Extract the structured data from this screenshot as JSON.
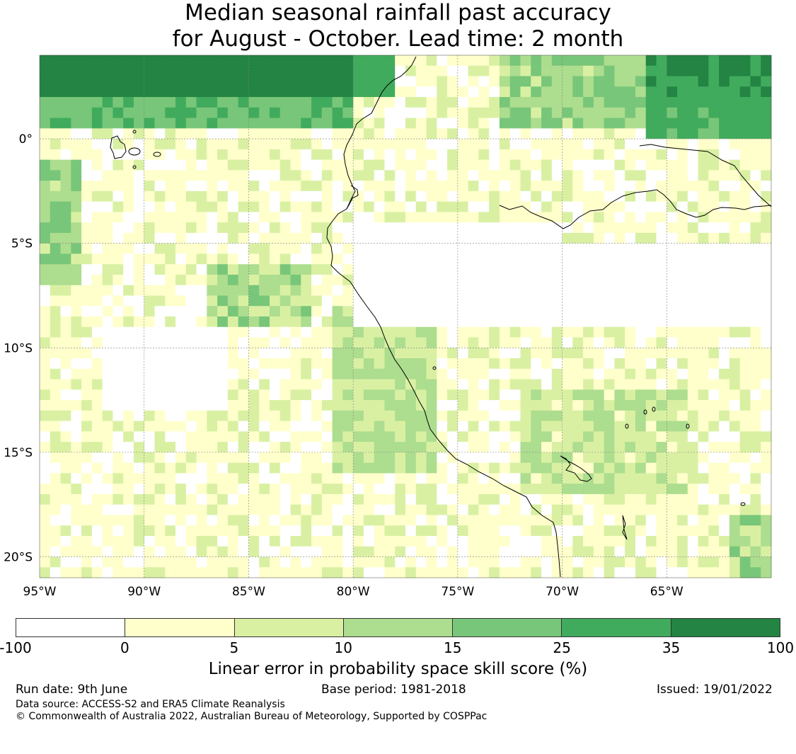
{
  "title": {
    "line1": "Median seasonal rainfall past accuracy",
    "line2": "for August - October. Lead time: 2 month"
  },
  "map": {
    "lon_range": [
      -95,
      -60
    ],
    "lat_range": [
      -21,
      4
    ],
    "lon_labels": [
      "95°W",
      "90°W",
      "85°W",
      "80°W",
      "75°W",
      "70°W",
      "65°W"
    ],
    "lat_labels": [
      "0°",
      "5°S",
      "10°S",
      "15°S",
      "20°S"
    ],
    "gridlines": true,
    "features": [
      "South America Pacific coastline",
      "Galapagos Islands",
      "Amazon river",
      "Lake Titicaca"
    ]
  },
  "colorbar": {
    "tick_labels": [
      "-100",
      "0",
      "5",
      "10",
      "15",
      "25",
      "35",
      "100"
    ],
    "colors": [
      "#ffffff",
      "#ffffcc",
      "#d9f0a3",
      "#addd8e",
      "#78c679",
      "#41ab5d",
      "#238443"
    ],
    "label": "Linear error in probability space skill score (%)"
  },
  "footer": {
    "run_date": "Run date: 9th June",
    "base_period": "Base period: 1981-2018",
    "issued": "Issued: 19/01/2022",
    "data_source": "Data source: ACCESS-S2 and ERA5 Climate Reanalysis",
    "copyright": "© Commonwealth of Australia 2022, Australian Bureau of Meteorology, Supported by COSPPac"
  }
}
